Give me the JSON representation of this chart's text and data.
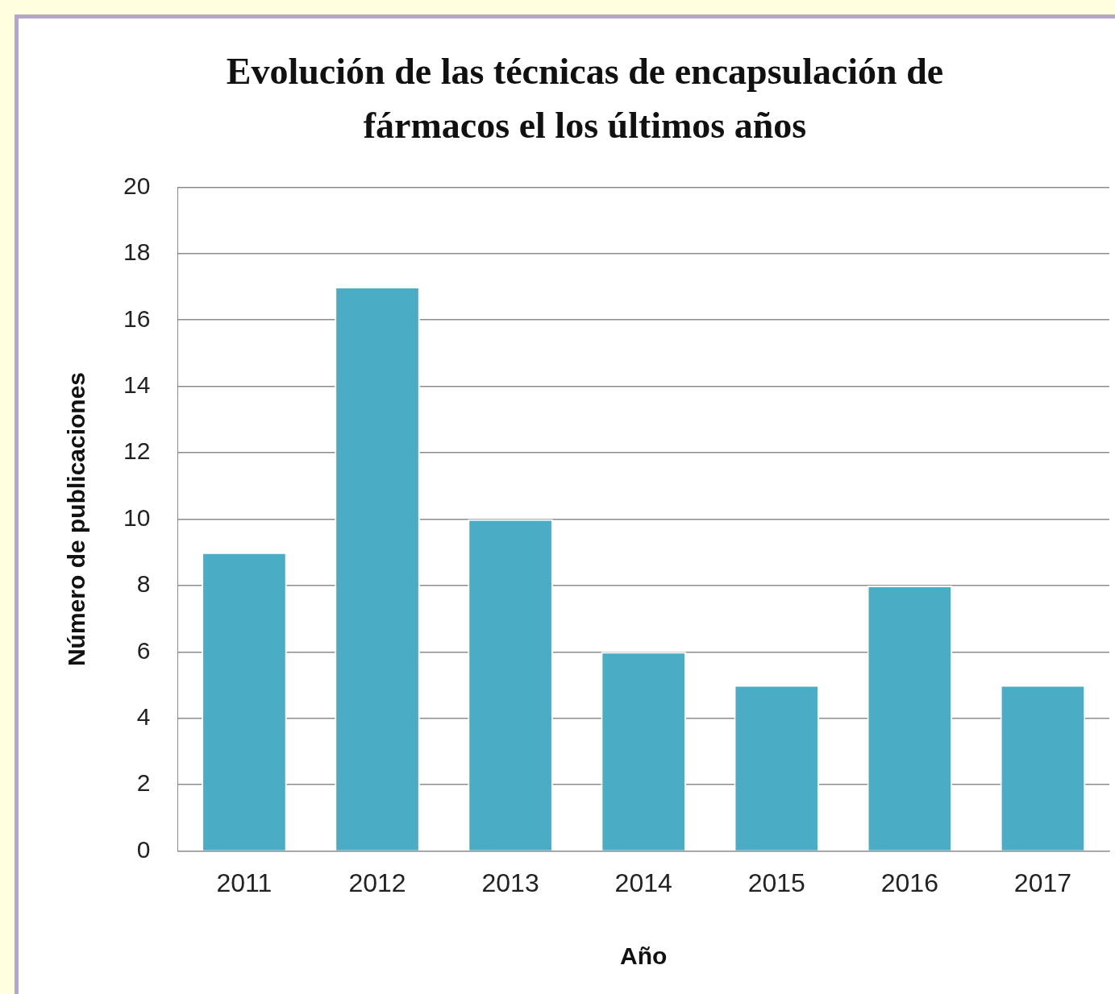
{
  "chart_data": {
    "type": "bar",
    "title": "Evolución de las técnicas de encapsulación de fármacos el los últimos años",
    "xlabel": "Año",
    "ylabel": "Número de publicaciones",
    "categories": [
      "2011",
      "2012",
      "2013",
      "2014",
      "2015",
      "2016",
      "2017"
    ],
    "values": [
      9,
      17,
      10,
      6,
      5,
      8,
      5
    ],
    "color": "#4bacc6",
    "ylim": [
      0,
      20
    ],
    "yticks": [
      0,
      2,
      4,
      6,
      8,
      10,
      12,
      14,
      16,
      18,
      20
    ],
    "grid": "y",
    "legend": false
  }
}
